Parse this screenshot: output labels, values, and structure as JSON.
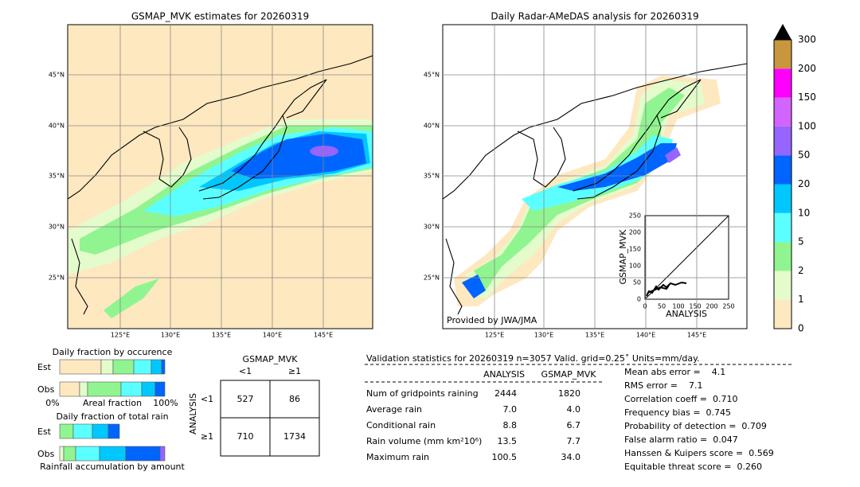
{
  "left_map": {
    "title": "GSMAP_MVK estimates for 20260319",
    "lat_labels": [
      "45°N",
      "40°N",
      "35°N",
      "30°N",
      "25°N"
    ],
    "lon_labels": [
      "125°E",
      "130°E",
      "135°E",
      "140°E",
      "145°E"
    ]
  },
  "right_map": {
    "title": "Daily Radar-AMeDAS analysis for 20260319",
    "lat_labels": [
      "45°N",
      "40°N",
      "35°N",
      "30°N",
      "25°N"
    ],
    "lon_labels": [
      "125°E",
      "130°E",
      "135°E",
      "140°E",
      "145°E"
    ],
    "credit": "Provided by JWA/JMA"
  },
  "scatter": {
    "xlabel": "ANALYSIS",
    "ylabel": "GSMAP_MVK",
    "ticks": [
      "0",
      "50",
      "100",
      "150",
      "200",
      "250"
    ]
  },
  "colorbar": {
    "labels": [
      "0",
      "1",
      "2",
      "5",
      "10",
      "20",
      "50",
      "100",
      "150",
      "200",
      "300"
    ],
    "colors": [
      "#fee8c0",
      "#e4fccc",
      "#90f590",
      "#5cffff",
      "#00c8ff",
      "#0064ff",
      "#9664ff",
      "#d264ff",
      "#ff00ff",
      "#c8963c"
    ]
  },
  "fraction_occurrence": {
    "title": "Daily fraction by occurence",
    "rows": [
      "Est",
      "Obs"
    ],
    "axis": [
      "0%",
      "Areal fraction",
      "100%"
    ]
  },
  "fraction_total": {
    "title": "Daily fraction of total rain",
    "rows": [
      "Est",
      "Obs"
    ],
    "footer": "Rainfall accumulation by amount"
  },
  "contingency": {
    "title": "GSMAP_MVK",
    "columns": [
      "<1",
      "≥1"
    ],
    "side": "ANALYSIS",
    "rows": [
      {
        "label": "<1",
        "cells": [
          "527",
          "86"
        ]
      },
      {
        "label": "≥1",
        "cells": [
          "710",
          "1734"
        ]
      }
    ]
  },
  "validation": {
    "header": "Validation statistics for 20260319  n=3057 Valid. grid=0.25˚ Units=mm/day.",
    "columns": [
      "ANALYSIS",
      "GSMAP_MVK"
    ],
    "rows": [
      [
        "Num of gridpoints raining",
        "2444",
        "1820"
      ],
      [
        "Average rain",
        "7.0",
        "4.0"
      ],
      [
        "Conditional rain",
        "8.8",
        "6.7"
      ],
      [
        "Rain volume (mm km²10⁶)",
        "13.5",
        "7.7"
      ],
      [
        "Maximum rain",
        "100.5",
        "34.0"
      ]
    ],
    "scores": [
      "Mean abs error =    4.1",
      "RMS error =    7.1",
      "Correlation coeff =  0.710",
      "Frequency bias =  0.745",
      "Probability of detection =  0.709",
      "False alarm ratio =  0.047",
      "Hanssen & Kuipers score =  0.569",
      "Equitable threat score =  0.260"
    ]
  }
}
